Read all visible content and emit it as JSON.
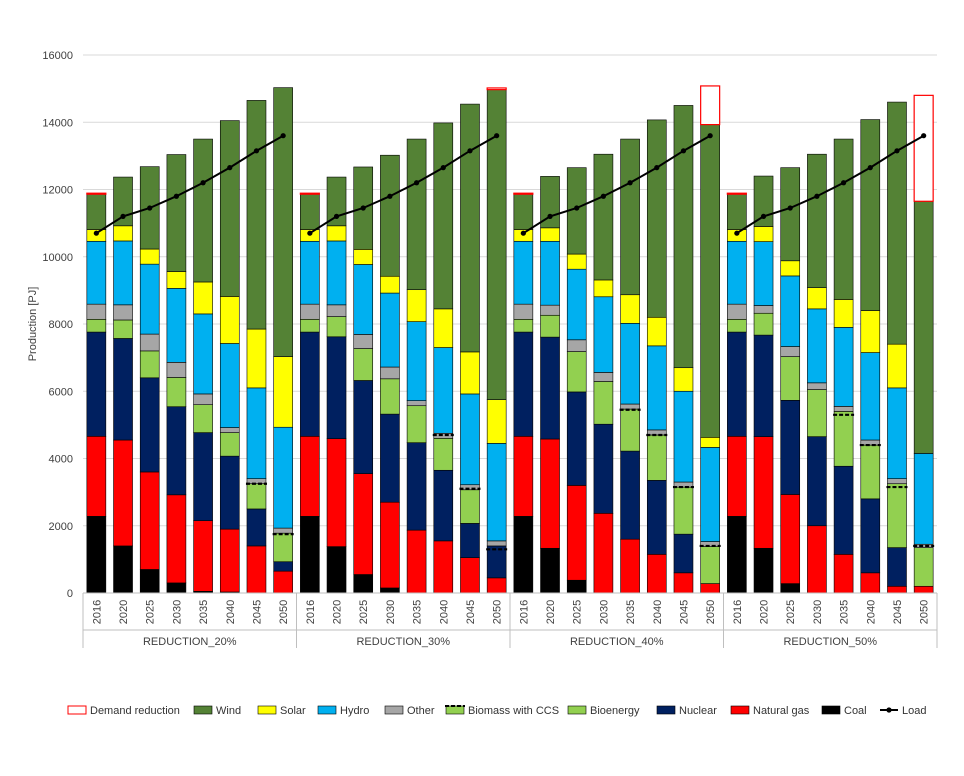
{
  "chart_data": {
    "type": "bar",
    "stacked": true,
    "ylabel": "Production [PJ]",
    "ylim": [
      0,
      16000
    ],
    "yticks": [
      0,
      2000,
      4000,
      6000,
      8000,
      10000,
      12000,
      14000,
      16000
    ],
    "grid": true,
    "legend_position": "bottom",
    "years": [
      "2016",
      "2020",
      "2025",
      "2030",
      "2035",
      "2040",
      "2045",
      "2050"
    ],
    "stack_order": [
      "Coal",
      "Natural gas",
      "Nuclear",
      "Bioenergy",
      "Other",
      "Hydro",
      "Solar",
      "Wind",
      "Demand reduction"
    ],
    "colors": {
      "Coal": "#000000",
      "Natural gas": "#ff0000",
      "Nuclear": "#002060",
      "Bioenergy": "#92d050",
      "Other": "#a6a6a6",
      "Hydro": "#00b0f0",
      "Solar": "#ffff00",
      "Wind": "#548235",
      "Demand reduction": "#ffffff",
      "Demand reduction border": "#ff0000",
      "Load": "#000000"
    },
    "groups": [
      {
        "name": "REDUCTION_20%",
        "series": {
          "Coal": [
            2280,
            1400,
            700,
            300,
            50,
            30,
            0,
            0
          ],
          "Natural gas": [
            2380,
            3150,
            2900,
            2620,
            2100,
            1870,
            1400,
            650
          ],
          "Nuclear": [
            3100,
            3020,
            2800,
            2620,
            2620,
            2170,
            1100,
            280
          ],
          "Bioenergy": [
            380,
            550,
            800,
            870,
            830,
            700,
            750,
            850
          ],
          "Other": [
            450,
            450,
            500,
            450,
            320,
            150,
            150,
            150
          ],
          "Hydro": [
            1870,
            1900,
            2080,
            2200,
            2380,
            2500,
            2700,
            3000
          ],
          "Solar": [
            350,
            450,
            450,
            500,
            950,
            1400,
            1750,
            2100
          ],
          "Wind": [
            1050,
            1450,
            2450,
            3480,
            4250,
            5230,
            6800,
            8000
          ],
          "Demand reduction": [
            30,
            0,
            0,
            0,
            0,
            0,
            0,
            0
          ]
        },
        "biomass_ccs": [
          0,
          0,
          0,
          0,
          0,
          0,
          3250,
          1750
        ],
        "load": [
          10700,
          11200,
          11450,
          11800,
          12200,
          12650,
          13150,
          13600
        ]
      },
      {
        "name": "REDUCTION_30%",
        "series": {
          "Coal": [
            2280,
            1380,
            550,
            150,
            0,
            0,
            0,
            0
          ],
          "Natural gas": [
            2380,
            3210,
            3000,
            2550,
            1870,
            1550,
            1050,
            450
          ],
          "Nuclear": [
            3100,
            3030,
            2770,
            2620,
            2600,
            2100,
            1020,
            950
          ],
          "Bioenergy": [
            380,
            600,
            950,
            1050,
            1100,
            950,
            1000,
            0
          ],
          "Other": [
            450,
            350,
            420,
            350,
            150,
            150,
            150,
            150
          ],
          "Hydro": [
            1870,
            1900,
            2080,
            2200,
            2350,
            2550,
            2700,
            2900
          ],
          "Solar": [
            350,
            450,
            450,
            500,
            950,
            1150,
            1250,
            1300
          ],
          "Wind": [
            1050,
            1450,
            2450,
            3600,
            4480,
            5530,
            7370,
            9220
          ],
          "Demand reduction": [
            30,
            0,
            0,
            0,
            0,
            0,
            0,
            50
          ]
        },
        "biomass_ccs": [
          0,
          0,
          0,
          0,
          0,
          4700,
          3100,
          1300
        ],
        "load": [
          10700,
          11200,
          11450,
          11800,
          12200,
          12650,
          13150,
          13600
        ]
      },
      {
        "name": "REDUCTION_40%",
        "series": {
          "Coal": [
            2280,
            1330,
            380,
            0,
            0,
            0,
            0,
            0
          ],
          "Natural gas": [
            2380,
            3250,
            2820,
            2370,
            1600,
            1150,
            600,
            280
          ],
          "Nuclear": [
            3100,
            3030,
            2780,
            2650,
            2620,
            2200,
            1150,
            0
          ],
          "Bioenergy": [
            380,
            650,
            1200,
            1270,
            1250,
            1350,
            1400,
            1100
          ],
          "Other": [
            450,
            300,
            350,
            270,
            150,
            150,
            150,
            150
          ],
          "Hydro": [
            1870,
            1900,
            2100,
            2250,
            2400,
            2500,
            2700,
            2800
          ],
          "Solar": [
            350,
            400,
            450,
            500,
            850,
            850,
            700,
            300
          ],
          "Wind": [
            1050,
            1530,
            2570,
            3740,
            4630,
            5870,
            7800,
            9300
          ],
          "Demand reduction": [
            30,
            0,
            0,
            0,
            0,
            0,
            0,
            1150
          ]
        },
        "biomass_ccs": [
          0,
          0,
          0,
          0,
          5450,
          4700,
          3150,
          1400
        ],
        "load": [
          10700,
          11200,
          11450,
          11800,
          12200,
          12650,
          13150,
          13600
        ]
      },
      {
        "name": "REDUCTION_50%",
        "series": {
          "Coal": [
            2280,
            1330,
            280,
            0,
            0,
            0,
            0,
            0
          ],
          "Natural gas": [
            2380,
            3320,
            2650,
            2000,
            1150,
            600,
            200,
            200
          ],
          "Nuclear": [
            3100,
            3020,
            2800,
            2650,
            2620,
            2200,
            1150,
            0
          ],
          "Bioenergy": [
            380,
            650,
            1300,
            1400,
            1630,
            1600,
            1900,
            1150
          ],
          "Other": [
            450,
            230,
            300,
            200,
            150,
            150,
            150,
            100
          ],
          "Hydro": [
            1870,
            1900,
            2100,
            2200,
            2350,
            2600,
            2700,
            2700
          ],
          "Solar": [
            350,
            450,
            450,
            630,
            830,
            1250,
            1300,
            0
          ],
          "Wind": [
            1050,
            1500,
            2770,
            3970,
            4770,
            5680,
            7200,
            7500
          ],
          "Demand reduction": [
            30,
            0,
            0,
            0,
            0,
            0,
            0,
            3150
          ]
        },
        "biomass_ccs": [
          0,
          0,
          0,
          0,
          5300,
          4400,
          3150,
          1400
        ],
        "load": [
          10700,
          11200,
          11450,
          11800,
          12200,
          12650,
          13150,
          13600
        ]
      }
    ],
    "legend": [
      "Demand reduction",
      "Wind",
      "Solar",
      "Hydro",
      "Other",
      "Biomass with CCS",
      "Bioenergy",
      "Nuclear",
      "Natural gas",
      "Coal",
      "Load"
    ]
  }
}
